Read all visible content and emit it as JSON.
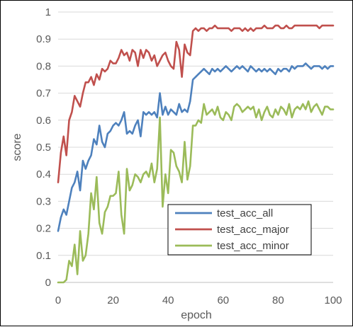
{
  "chart_data": {
    "type": "line",
    "title": "",
    "xlabel": "epoch",
    "ylabel": "score",
    "xlim": [
      0,
      100
    ],
    "ylim": [
      0,
      1
    ],
    "xticks": [
      "0",
      "20",
      "40",
      "60",
      "80",
      "100"
    ],
    "yticks": [
      "0",
      "0.1",
      "0.2",
      "0.3",
      "0.4",
      "0.5",
      "0.6",
      "0.7",
      "0.8",
      "0.9",
      "1"
    ],
    "grid": "horizontal",
    "legend_position": "bottom-right",
    "x": [
      0,
      1,
      2,
      3,
      4,
      5,
      6,
      7,
      8,
      9,
      10,
      11,
      12,
      13,
      14,
      15,
      16,
      17,
      18,
      19,
      20,
      21,
      22,
      23,
      24,
      25,
      26,
      27,
      28,
      29,
      30,
      31,
      32,
      33,
      34,
      35,
      36,
      37,
      38,
      39,
      40,
      41,
      42,
      43,
      44,
      45,
      46,
      47,
      48,
      49,
      50,
      51,
      52,
      53,
      54,
      55,
      56,
      57,
      58,
      59,
      60,
      61,
      62,
      63,
      64,
      65,
      66,
      67,
      68,
      69,
      70,
      71,
      72,
      73,
      74,
      75,
      76,
      77,
      78,
      79,
      80,
      81,
      82,
      83,
      84,
      85,
      86,
      87,
      88,
      89,
      90,
      91,
      92,
      93,
      94,
      95,
      96,
      97,
      98,
      99,
      100
    ],
    "series": [
      {
        "name": "test_acc_all",
        "color": "#4e81bd",
        "values": [
          0.19,
          0.24,
          0.27,
          0.25,
          0.3,
          0.35,
          0.37,
          0.41,
          0.34,
          0.45,
          0.42,
          0.45,
          0.47,
          0.53,
          0.51,
          0.58,
          0.52,
          0.5,
          0.55,
          0.56,
          0.58,
          0.59,
          0.58,
          0.6,
          0.63,
          0.55,
          0.56,
          0.55,
          0.58,
          0.6,
          0.54,
          0.63,
          0.62,
          0.63,
          0.62,
          0.63,
          0.61,
          0.7,
          0.62,
          0.65,
          0.62,
          0.64,
          0.63,
          0.62,
          0.66,
          0.63,
          0.64,
          0.63,
          0.67,
          0.75,
          0.76,
          0.77,
          0.78,
          0.79,
          0.78,
          0.77,
          0.79,
          0.78,
          0.79,
          0.78,
          0.79,
          0.8,
          0.79,
          0.78,
          0.79,
          0.8,
          0.79,
          0.8,
          0.79,
          0.78,
          0.8,
          0.79,
          0.78,
          0.79,
          0.78,
          0.79,
          0.78,
          0.79,
          0.78,
          0.77,
          0.79,
          0.78,
          0.79,
          0.79,
          0.78,
          0.8,
          0.79,
          0.8,
          0.8,
          0.8,
          0.81,
          0.8,
          0.79,
          0.8,
          0.8,
          0.8,
          0.79,
          0.8,
          0.79,
          0.8,
          0.8
        ]
      },
      {
        "name": "test_acc_major",
        "color": "#c0504d",
        "values": [
          0.37,
          0.48,
          0.54,
          0.47,
          0.6,
          0.63,
          0.69,
          0.67,
          0.65,
          0.7,
          0.74,
          0.74,
          0.76,
          0.73,
          0.77,
          0.75,
          0.79,
          0.78,
          0.79,
          0.82,
          0.81,
          0.81,
          0.83,
          0.86,
          0.84,
          0.85,
          0.82,
          0.86,
          0.85,
          0.8,
          0.86,
          0.83,
          0.86,
          0.85,
          0.82,
          0.84,
          0.8,
          0.82,
          0.84,
          0.85,
          0.82,
          0.8,
          0.79,
          0.89,
          0.86,
          0.76,
          0.88,
          0.85,
          0.84,
          0.93,
          0.94,
          0.93,
          0.94,
          0.94,
          0.93,
          0.94,
          0.94,
          0.95,
          0.94,
          0.94,
          0.94,
          0.94,
          0.94,
          0.93,
          0.94,
          0.94,
          0.94,
          0.93,
          0.94,
          0.93,
          0.94,
          0.93,
          0.94,
          0.94,
          0.94,
          0.95,
          0.94,
          0.94,
          0.94,
          0.95,
          0.95,
          0.94,
          0.94,
          0.95,
          0.94,
          0.94,
          0.95,
          0.95,
          0.95,
          0.95,
          0.95,
          0.95,
          0.95,
          0.95,
          0.95,
          0.94,
          0.95,
          0.95,
          0.95,
          0.95,
          0.95
        ]
      },
      {
        "name": "test_acc_minor",
        "color": "#9bbb59",
        "values": [
          0.0,
          0.0,
          0.0,
          0.01,
          0.08,
          0.06,
          0.14,
          0.03,
          0.19,
          0.08,
          0.1,
          0.18,
          0.33,
          0.27,
          0.39,
          0.22,
          0.18,
          0.26,
          0.28,
          0.32,
          0.32,
          0.33,
          0.41,
          0.25,
          0.18,
          0.42,
          0.34,
          0.36,
          0.4,
          0.39,
          0.37,
          0.4,
          0.41,
          0.39,
          0.44,
          0.37,
          0.42,
          0.61,
          0.28,
          0.4,
          0.33,
          0.49,
          0.48,
          0.43,
          0.41,
          0.37,
          0.52,
          0.38,
          0.43,
          0.58,
          0.58,
          0.6,
          0.59,
          0.66,
          0.62,
          0.63,
          0.64,
          0.62,
          0.65,
          0.61,
          0.6,
          0.63,
          0.62,
          0.6,
          0.65,
          0.66,
          0.65,
          0.63,
          0.64,
          0.65,
          0.64,
          0.65,
          0.61,
          0.64,
          0.6,
          0.63,
          0.65,
          0.62,
          0.61,
          0.64,
          0.62,
          0.65,
          0.64,
          0.62,
          0.66,
          0.61,
          0.64,
          0.65,
          0.64,
          0.66,
          0.64,
          0.67,
          0.63,
          0.65,
          0.66,
          0.64,
          0.62,
          0.65,
          0.65,
          0.64,
          0.64
        ]
      }
    ]
  }
}
